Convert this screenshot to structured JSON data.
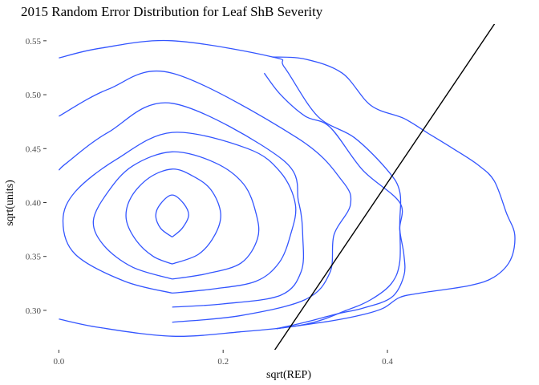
{
  "chart_data": {
    "type": "contour",
    "title": "2015 Random Error Distribution for Leaf ShB Severity",
    "xlabel": "sqrt(REP)",
    "ylabel": "sqrt(units)",
    "xlim": [
      -0.015,
      0.565
    ],
    "ylim": [
      0.2635,
      0.5655
    ],
    "x_ticks": [
      0.0,
      0.2,
      0.4
    ],
    "x_tick_labels": [
      "0.0",
      "0.2",
      "0.4"
    ],
    "y_ticks": [
      0.3,
      0.35,
      0.4,
      0.45,
      0.5,
      0.55
    ],
    "y_tick_labels": [
      "0.30",
      "0.35",
      "0.40",
      "0.45",
      "0.50",
      "0.55"
    ],
    "grid": false,
    "legend": "none",
    "colors": {
      "contour": "#3355ff",
      "reference_line": "#000000"
    },
    "contours": [
      {
        "points": [
          [
            0.138,
            0.368
          ],
          [
            0.15,
            0.376
          ],
          [
            0.158,
            0.388
          ],
          [
            0.152,
            0.399
          ],
          [
            0.138,
            0.407
          ],
          [
            0.124,
            0.399
          ],
          [
            0.118,
            0.388
          ],
          [
            0.124,
            0.376
          ],
          [
            0.138,
            0.368
          ]
        ]
      },
      {
        "points": [
          [
            0.138,
            0.343
          ],
          [
            0.17,
            0.352
          ],
          [
            0.19,
            0.37
          ],
          [
            0.197,
            0.39
          ],
          [
            0.185,
            0.412
          ],
          [
            0.162,
            0.425
          ],
          [
            0.138,
            0.431
          ],
          [
            0.11,
            0.423
          ],
          [
            0.088,
            0.405
          ],
          [
            0.082,
            0.385
          ],
          [
            0.094,
            0.365
          ],
          [
            0.115,
            0.35
          ],
          [
            0.138,
            0.343
          ]
        ]
      },
      {
        "points": [
          [
            0.138,
            0.329
          ],
          [
            0.18,
            0.334
          ],
          [
            0.222,
            0.344
          ],
          [
            0.242,
            0.367
          ],
          [
            0.24,
            0.39
          ],
          [
            0.225,
            0.417
          ],
          [
            0.19,
            0.437
          ],
          [
            0.138,
            0.447
          ],
          [
            0.09,
            0.434
          ],
          [
            0.06,
            0.41
          ],
          [
            0.042,
            0.383
          ],
          [
            0.055,
            0.36
          ],
          [
            0.09,
            0.34
          ],
          [
            0.138,
            0.329
          ]
        ]
      },
      {
        "points": [
          [
            0.138,
            0.316
          ],
          [
            0.19,
            0.32
          ],
          [
            0.24,
            0.327
          ],
          [
            0.268,
            0.344
          ],
          [
            0.282,
            0.37
          ],
          [
            0.288,
            0.398
          ],
          [
            0.27,
            0.428
          ],
          [
            0.23,
            0.45
          ],
          [
            0.138,
            0.465
          ],
          [
            0.07,
            0.44
          ],
          [
            0.02,
            0.41
          ],
          [
            0.005,
            0.383
          ],
          [
            0.02,
            0.352
          ],
          [
            0.08,
            0.327
          ],
          [
            0.138,
            0.316
          ]
        ]
      },
      {
        "points": [
          [
            0.138,
            0.303
          ],
          [
            0.2,
            0.306
          ],
          [
            0.27,
            0.314
          ],
          [
            0.295,
            0.336
          ],
          [
            0.297,
            0.368
          ],
          [
            0.292,
            0.4
          ],
          [
            0.272,
            0.44
          ],
          [
            0.138,
            0.492
          ],
          [
            0.06,
            0.465
          ],
          [
            0.01,
            0.437
          ],
          [
            0.0,
            0.43
          ]
        ]
      },
      {
        "points": [
          [
            0.138,
            0.289
          ],
          [
            0.22,
            0.295
          ],
          [
            0.3,
            0.31
          ],
          [
            0.33,
            0.335
          ],
          [
            0.335,
            0.37
          ],
          [
            0.355,
            0.398
          ],
          [
            0.345,
            0.42
          ],
          [
            0.29,
            0.46
          ],
          [
            0.138,
            0.52
          ],
          [
            0.06,
            0.505
          ],
          [
            0.0,
            0.48
          ]
        ]
      },
      {
        "points": [
          [
            0.0,
            0.292
          ],
          [
            0.05,
            0.284
          ],
          [
            0.138,
            0.276
          ],
          [
            0.22,
            0.28
          ],
          [
            0.3,
            0.287
          ],
          [
            0.35,
            0.3
          ],
          [
            0.38,
            0.31
          ],
          [
            0.405,
            0.325
          ],
          [
            0.415,
            0.345
          ],
          [
            0.415,
            0.38
          ],
          [
            0.415,
            0.41
          ],
          [
            0.4,
            0.43
          ],
          [
            0.36,
            0.46
          ],
          [
            0.315,
            0.48
          ],
          [
            0.275,
            0.525
          ],
          [
            0.26,
            0.535
          ],
          [
            0.138,
            0.55
          ],
          [
            0.05,
            0.543
          ],
          [
            0.0,
            0.534
          ]
        ]
      },
      {
        "points": [
          [
            0.265,
            0.283
          ],
          [
            0.33,
            0.29
          ],
          [
            0.37,
            0.296
          ],
          [
            0.395,
            0.302
          ],
          [
            0.415,
            0.312
          ],
          [
            0.44,
            0.316
          ],
          [
            0.5,
            0.323
          ],
          [
            0.53,
            0.331
          ],
          [
            0.55,
            0.347
          ],
          [
            0.555,
            0.37
          ],
          [
            0.545,
            0.39
          ],
          [
            0.53,
            0.42
          ],
          [
            0.51,
            0.435
          ],
          [
            0.48,
            0.45
          ],
          [
            0.45,
            0.464
          ],
          [
            0.42,
            0.478
          ],
          [
            0.38,
            0.49
          ],
          [
            0.345,
            0.52
          ],
          [
            0.3,
            0.533
          ],
          [
            0.26,
            0.535
          ]
        ]
      },
      {
        "points": [
          [
            0.265,
            0.283
          ],
          [
            0.3,
            0.289
          ],
          [
            0.34,
            0.297
          ],
          [
            0.37,
            0.302
          ],
          [
            0.405,
            0.312
          ],
          [
            0.42,
            0.332
          ],
          [
            0.42,
            0.352
          ],
          [
            0.415,
            0.375
          ],
          [
            0.415,
            0.4
          ],
          [
            0.37,
            0.43
          ],
          [
            0.33,
            0.47
          ],
          [
            0.3,
            0.48
          ],
          [
            0.27,
            0.5
          ],
          [
            0.25,
            0.52
          ]
        ]
      }
    ],
    "reference_line": {
      "slope": 1.13,
      "intercept": -0.0337,
      "x_range": [
        0.26,
        0.565
      ]
    }
  }
}
